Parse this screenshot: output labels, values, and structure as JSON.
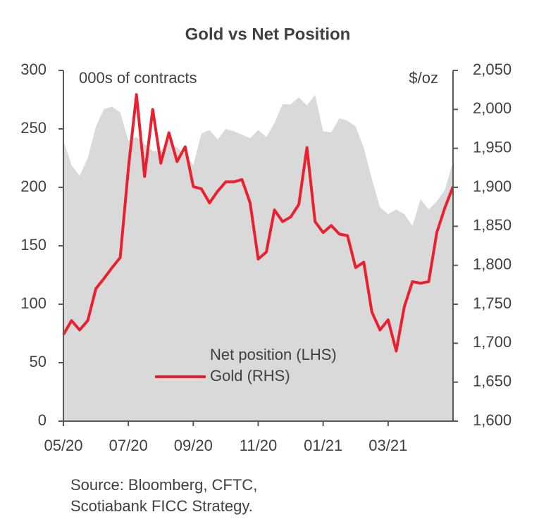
{
  "chart_data": {
    "type": "line",
    "title": "Gold  vs Net Position",
    "ylabel": "000s of contracts",
    "y2label": "$/oz",
    "source": [
      "Source: Bloomberg, CFTC,",
      "Scotiabank FICC  Strategy."
    ],
    "categories": [
      "05/20",
      null,
      null,
      null,
      null,
      null,
      null,
      null,
      "07/20",
      null,
      null,
      null,
      null,
      null,
      null,
      null,
      "09/20",
      null,
      null,
      null,
      null,
      null,
      null,
      null,
      "11/20",
      null,
      null,
      null,
      null,
      null,
      null,
      null,
      "01/21",
      null,
      null,
      null,
      null,
      null,
      null,
      null,
      "03/21",
      null,
      null,
      null,
      null,
      null,
      null,
      null,
      null
    ],
    "series": [
      {
        "name": "Net position (LHS)",
        "type": "area",
        "color": "#d9d9d9",
        "axis": "y",
        "values": [
          240,
          219,
          210,
          225,
          252,
          267,
          269,
          264,
          240,
          243,
          237,
          231,
          231,
          240,
          234,
          228,
          219,
          246,
          249,
          241,
          250,
          248,
          245,
          242,
          249,
          243,
          255,
          271,
          271,
          277,
          270,
          279,
          248,
          247,
          259,
          257,
          252,
          234,
          207,
          183,
          177,
          181,
          177,
          167,
          190,
          181,
          188,
          198,
          222
        ]
      },
      {
        "name": "Gold (RHS)",
        "type": "line",
        "color": "#e8202f",
        "axis": "y2",
        "values": [
          1711,
          1729,
          1717,
          1729,
          1770,
          1783,
          1797,
          1810,
          1924,
          2019,
          1914,
          2000,
          1931,
          1970,
          1933,
          1952,
          1901,
          1898,
          1880,
          1895,
          1907,
          1907,
          1910,
          1880,
          1808,
          1817,
          1871,
          1856,
          1862,
          1878,
          1951,
          1856,
          1842,
          1851,
          1840,
          1838,
          1797,
          1804,
          1740,
          1717,
          1730,
          1690,
          1747,
          1779,
          1777,
          1779,
          1842,
          1874,
          1901
        ]
      }
    ],
    "ylim": [
      0,
      300
    ],
    "yticks": [
      0,
      50,
      100,
      150,
      200,
      250,
      300
    ],
    "y2lim": [
      1600,
      2050
    ],
    "y2ticks": [
      {
        "value": 1600,
        "label": "1,600"
      },
      {
        "value": 1650,
        "label": "1,650"
      },
      {
        "value": 1700,
        "label": "1,700"
      },
      {
        "value": 1750,
        "label": "1,750"
      },
      {
        "value": 1800,
        "label": "1,800"
      },
      {
        "value": 1850,
        "label": "1,850"
      },
      {
        "value": 1900,
        "label": "1,900"
      },
      {
        "value": 1950,
        "label": "1,950"
      },
      {
        "value": 2000,
        "label": "2,000"
      },
      {
        "value": 2050,
        "label": "2,050"
      }
    ],
    "grid": false
  }
}
